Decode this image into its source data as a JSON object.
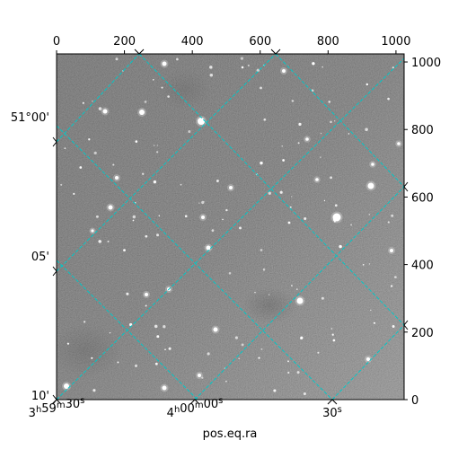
{
  "chart_data": {
    "type": "image",
    "title": "",
    "xlabel": "pos.eq.ra",
    "pixel_axes": {
      "top_x_ticks": [
        "0",
        "200",
        "400",
        "600",
        "800",
        "1000"
      ],
      "right_y_ticks": [
        "0",
        "200",
        "400",
        "600",
        "800",
        "1000"
      ],
      "x_range": [
        0,
        1024
      ],
      "y_range": [
        0,
        1024
      ]
    },
    "world_axes": {
      "bottom_ra_ticks": [
        {
          "label": "3h59m30s",
          "main": "3",
          "h": "h",
          "mid": "59",
          "m": "m",
          "rest": "30",
          "s": "s"
        },
        {
          "label": "4h00m00s",
          "main": "4",
          "h": "h",
          "mid": "00",
          "m": "m",
          "rest": "00",
          "s": "s"
        },
        {
          "label": "30s",
          "main": "",
          "h": "",
          "mid": "",
          "m": "",
          "rest": "30",
          "s": "s"
        }
      ],
      "left_dec_ticks": [
        "51°00'",
        "05'",
        "10'"
      ]
    },
    "grid": true,
    "grid_color": "#00c8c8",
    "image_colormap": "gray"
  }
}
